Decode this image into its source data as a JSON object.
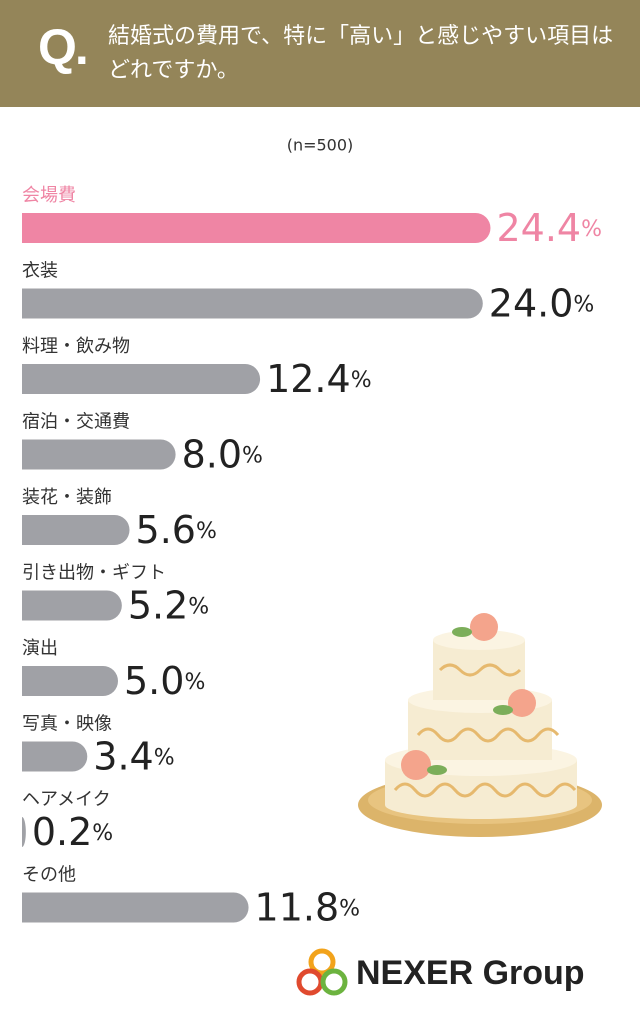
{
  "header": {
    "q_mark": "Q.",
    "question": "結婚式の費用で、特に「高い」と感じやすい項目はどれですか。"
  },
  "chart_data": {
    "type": "barh",
    "note": "(n=500)",
    "categories": [
      "会場費",
      "衣装",
      "料理・飲み物",
      "宿泊・交通費",
      "装花・装飾",
      "引き出物・ギフト",
      "演出",
      "写真・映像",
      "ヘアメイク",
      "その他"
    ],
    "values": [
      24.4,
      24.0,
      12.4,
      8.0,
      5.6,
      5.2,
      5.0,
      3.4,
      0.2,
      11.8
    ],
    "value_labels": [
      "24.4%",
      "24.0%",
      "12.4%",
      "8.0%",
      "5.6%",
      "5.2%",
      "5.0%",
      "3.4%",
      "0.2%",
      "11.8%"
    ],
    "colors": [
      "#ef85a4",
      "#a0a1a6",
      "#a0a1a6",
      "#a0a1a6",
      "#a0a1a6",
      "#a0a1a6",
      "#a0a1a6",
      "#a0a1a6",
      "#a0a1a6",
      "#a0a1a6"
    ]
  },
  "footer": {
    "logo": "NEXER Group"
  }
}
